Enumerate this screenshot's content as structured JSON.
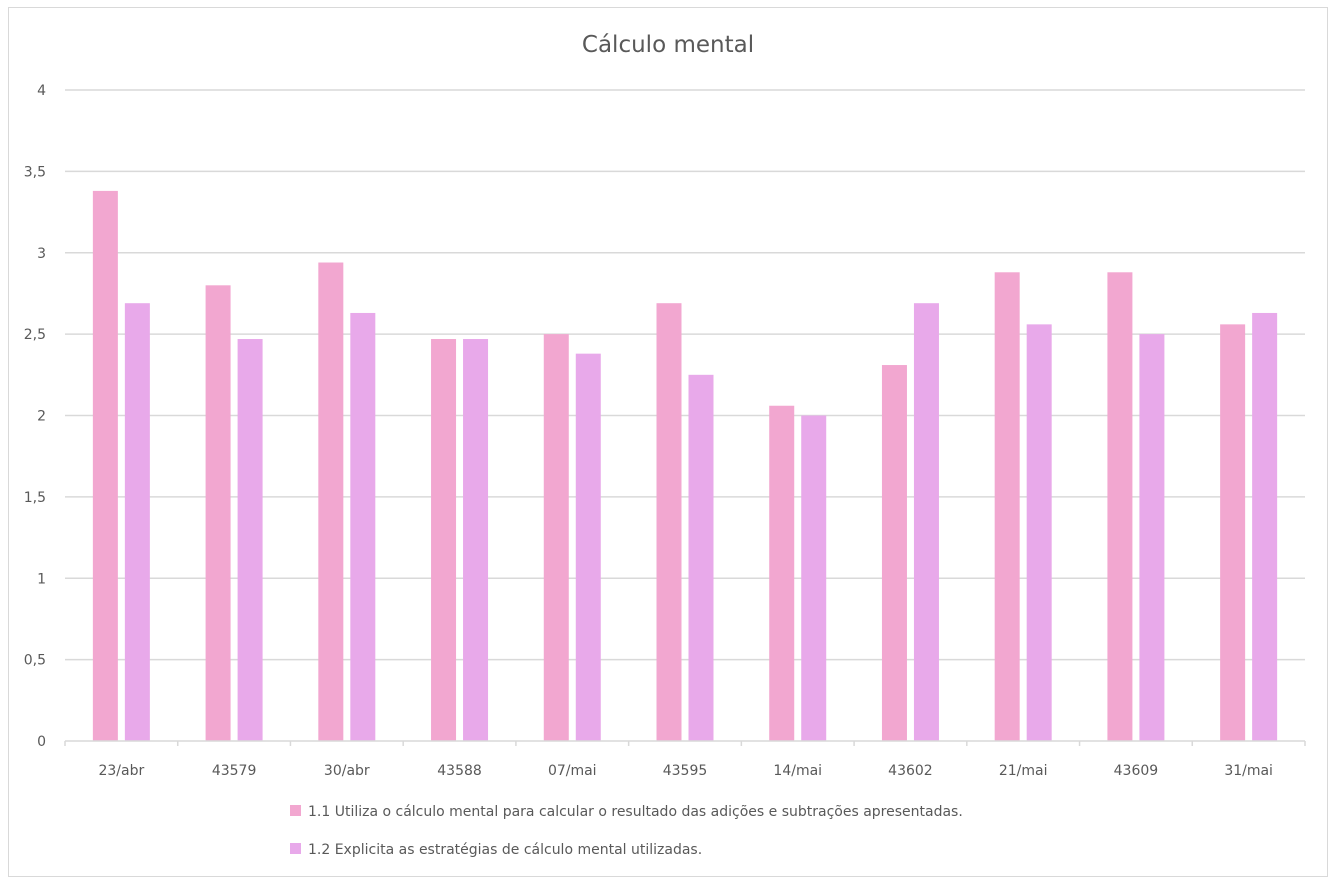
{
  "chart_data": {
    "type": "bar",
    "title": "Cálculo mental",
    "xlabel": "",
    "ylabel": "",
    "ylim": [
      0,
      4
    ],
    "yticks": [
      "0",
      "0,5",
      "1",
      "1,5",
      "2",
      "2,5",
      "3",
      "3,5",
      "4"
    ],
    "ytick_values": [
      0,
      0.5,
      1,
      1.5,
      2,
      2.5,
      3,
      3.5,
      4
    ],
    "grid": true,
    "legend_position": "bottom",
    "categories": [
      "23/abr",
      "43579",
      "30/abr",
      "43588",
      "07/mai",
      "43595",
      "14/mai",
      "43602",
      "21/mai",
      "43609",
      "31/mai"
    ],
    "series": [
      {
        "name": "1.1 Utiliza o cálculo mental para calcular o resultado das adições e subtrações apresentadas.",
        "color": "#f2a7d0",
        "values": [
          3.38,
          2.8,
          2.94,
          2.47,
          2.5,
          2.69,
          2.06,
          2.31,
          2.88,
          2.88,
          2.56
        ]
      },
      {
        "name": "1.2 Explicita as estratégias de cálculo mental utilizadas.",
        "color": "#e8a9ea",
        "values": [
          2.69,
          2.47,
          2.63,
          2.47,
          2.38,
          2.25,
          2.0,
          2.69,
          2.56,
          2.5,
          2.63
        ]
      }
    ],
    "colors": {
      "grid": "#d9d9d9",
      "text": "#595959",
      "axis": "#d9d9d9"
    }
  }
}
